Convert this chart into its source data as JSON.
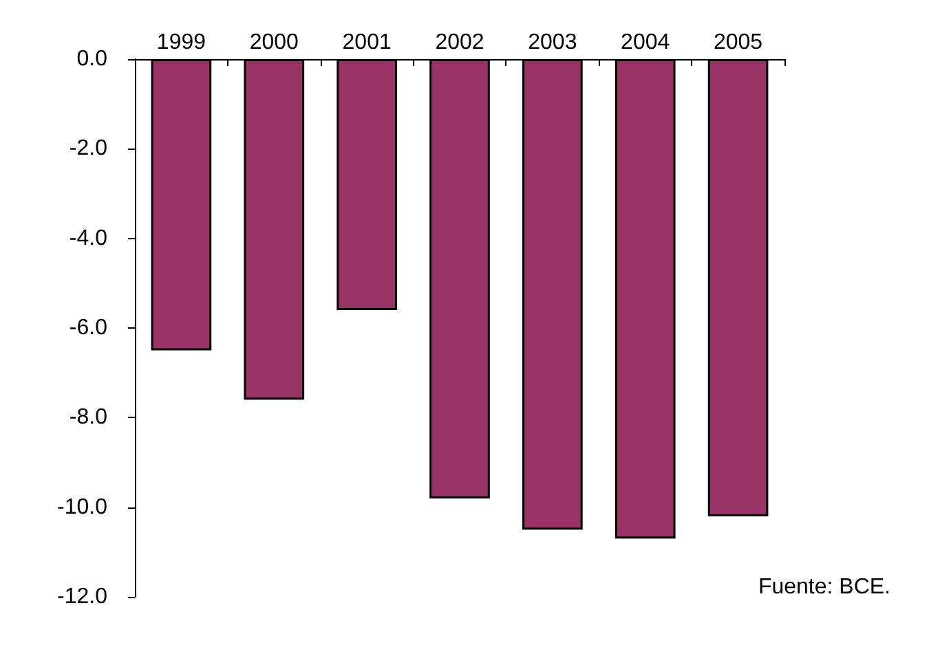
{
  "chart_data": {
    "type": "bar",
    "categories": [
      "1999",
      "2000",
      "2001",
      "2002",
      "2003",
      "2004",
      "2005"
    ],
    "values": [
      -6.5,
      -7.6,
      -5.6,
      -9.8,
      -10.5,
      -10.7,
      -10.2
    ],
    "color": "#993366",
    "ylim": [
      -12,
      0
    ],
    "yticks": [
      {
        "value": 0,
        "label": "0.0"
      },
      {
        "value": -2,
        "label": "-2.0"
      },
      {
        "value": -4,
        "label": "-4.0"
      },
      {
        "value": -6,
        "label": "-6.0"
      },
      {
        "value": -8,
        "label": "-8.0"
      },
      {
        "value": -10,
        "label": "-10.0"
      },
      {
        "value": -12,
        "label": "-12.0"
      }
    ],
    "grid": false,
    "annotations": [
      "Fuente: BCE."
    ]
  }
}
